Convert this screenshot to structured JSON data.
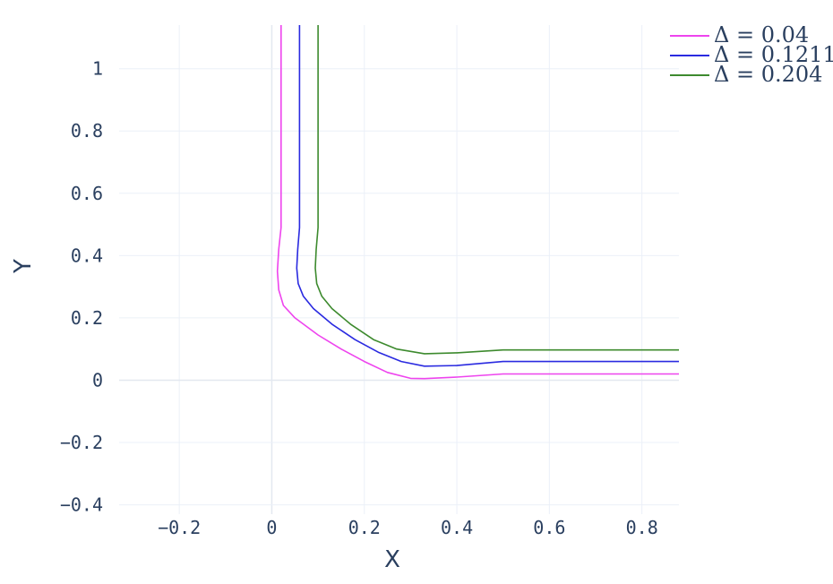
{
  "chart_data": {
    "type": "line",
    "title": "",
    "xlabel": "X",
    "ylabel": "Y",
    "xlim": [
      -0.33,
      0.88
    ],
    "ylim": [
      -0.43,
      1.14
    ],
    "x_ticks": [
      -0.2,
      0,
      0.2,
      0.4,
      0.6,
      0.8
    ],
    "y_ticks": [
      -0.4,
      -0.2,
      0,
      0.2,
      0.4,
      0.6,
      0.8,
      1
    ],
    "x_tick_labels": [
      "−0.2",
      "0",
      "0.2",
      "0.4",
      "0.6",
      "0.8"
    ],
    "y_tick_labels": [
      "−0.4",
      "−0.2",
      "0",
      "0.2",
      "0.4",
      "0.6",
      "0.8",
      "1"
    ],
    "grid": true,
    "legend_position": "top-right",
    "series": [
      {
        "name": "Δ = 0.04",
        "color": "#ee44ee",
        "x": [
          0.02,
          0.02,
          0.02,
          0.015,
          0.012,
          0.015,
          0.025,
          0.05,
          0.1,
          0.15,
          0.2,
          0.25,
          0.3,
          0.33,
          0.4,
          0.5,
          0.6,
          0.7,
          0.8,
          0.88
        ],
        "y": [
          1.14,
          0.8,
          0.49,
          0.42,
          0.35,
          0.29,
          0.24,
          0.2,
          0.145,
          0.1,
          0.06,
          0.025,
          0.006,
          0.005,
          0.01,
          0.02,
          0.02,
          0.02,
          0.02,
          0.02
        ]
      },
      {
        "name": "Δ = 0.1211",
        "color": "#2a2ae0",
        "x": [
          0.06,
          0.06,
          0.06,
          0.056,
          0.054,
          0.057,
          0.068,
          0.09,
          0.13,
          0.18,
          0.23,
          0.28,
          0.33,
          0.4,
          0.5,
          0.6,
          0.7,
          0.8,
          0.88
        ],
        "y": [
          1.14,
          0.8,
          0.49,
          0.42,
          0.36,
          0.31,
          0.27,
          0.23,
          0.18,
          0.13,
          0.09,
          0.06,
          0.045,
          0.047,
          0.06,
          0.06,
          0.06,
          0.06,
          0.06
        ]
      },
      {
        "name": "Δ = 0.204",
        "color": "#3d8a2e",
        "x": [
          0.1,
          0.1,
          0.1,
          0.096,
          0.094,
          0.097,
          0.108,
          0.13,
          0.17,
          0.22,
          0.27,
          0.33,
          0.4,
          0.5,
          0.6,
          0.7,
          0.8,
          0.88
        ],
        "y": [
          1.14,
          0.8,
          0.49,
          0.42,
          0.36,
          0.31,
          0.27,
          0.23,
          0.18,
          0.13,
          0.1,
          0.085,
          0.088,
          0.097,
          0.097,
          0.097,
          0.097,
          0.097
        ]
      }
    ]
  }
}
